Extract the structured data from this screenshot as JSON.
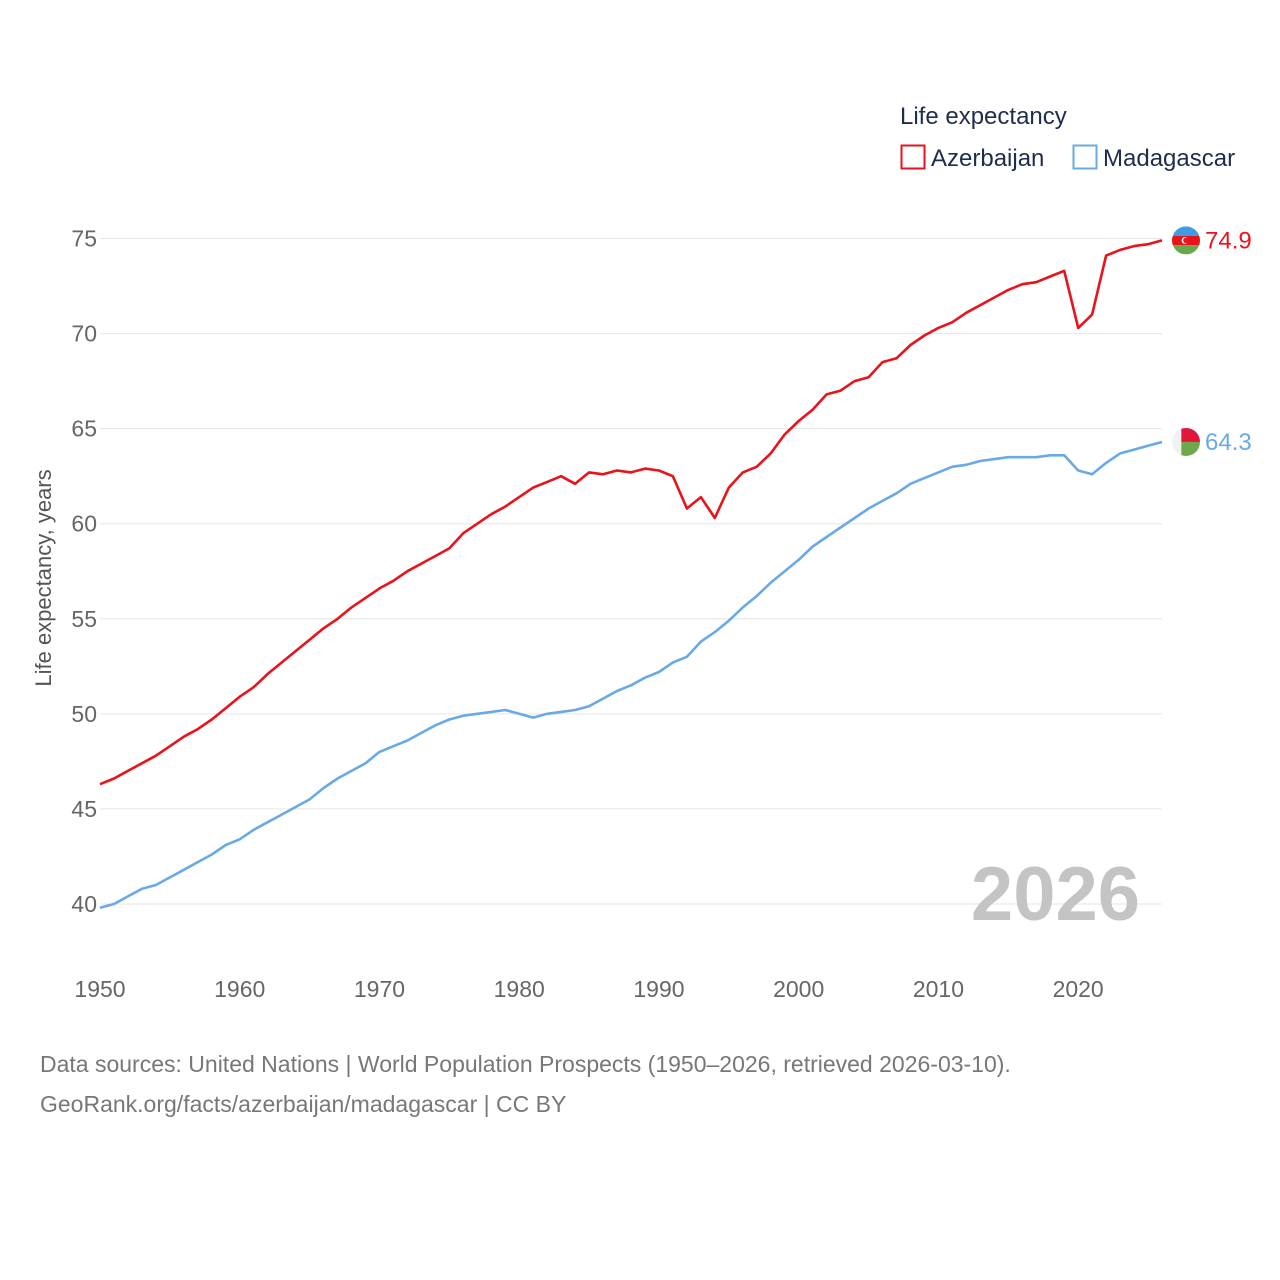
{
  "chart_data": {
    "type": "line",
    "title": "Life expectancy",
    "ylabel": "Life expectancy, years",
    "xlabel": "",
    "xlim": [
      1950,
      2026
    ],
    "ylim": [
      38,
      76.5
    ],
    "yticks": [
      40,
      45,
      50,
      55,
      60,
      65,
      70,
      75
    ],
    "xticks": [
      1950,
      1960,
      1970,
      1980,
      1990,
      2000,
      2010,
      2020
    ],
    "grid": true,
    "legend_position": "top-right",
    "current_year": "2026",
    "x": [
      1950,
      1951,
      1952,
      1953,
      1954,
      1955,
      1956,
      1957,
      1958,
      1959,
      1960,
      1961,
      1962,
      1963,
      1964,
      1965,
      1966,
      1967,
      1968,
      1969,
      1970,
      1971,
      1972,
      1973,
      1974,
      1975,
      1976,
      1977,
      1978,
      1979,
      1980,
      1981,
      1982,
      1983,
      1984,
      1985,
      1986,
      1987,
      1988,
      1989,
      1990,
      1991,
      1992,
      1993,
      1994,
      1995,
      1996,
      1997,
      1998,
      1999,
      2000,
      2001,
      2002,
      2003,
      2004,
      2005,
      2006,
      2007,
      2008,
      2009,
      2010,
      2011,
      2012,
      2013,
      2014,
      2015,
      2016,
      2017,
      2018,
      2019,
      2020,
      2021,
      2022,
      2023,
      2024,
      2025,
      2026
    ],
    "series": [
      {
        "name": "Azerbaijan",
        "color": "#e8131b",
        "end_label": "74.9",
        "flag_icon": "azerbaijan-flag-icon",
        "values": [
          46.3,
          46.6,
          47.0,
          47.4,
          47.8,
          48.3,
          48.8,
          49.2,
          49.7,
          50.3,
          50.9,
          51.4,
          52.1,
          52.7,
          53.3,
          53.9,
          54.5,
          55.0,
          55.6,
          56.1,
          56.6,
          57.0,
          57.5,
          57.9,
          58.3,
          58.7,
          59.5,
          60.0,
          60.5,
          60.9,
          61.4,
          61.9,
          62.2,
          62.5,
          62.1,
          62.7,
          62.6,
          62.8,
          62.7,
          62.9,
          62.8,
          62.5,
          60.8,
          61.4,
          60.3,
          61.9,
          62.7,
          63.0,
          63.7,
          64.7,
          65.4,
          66.0,
          66.8,
          67.0,
          67.5,
          67.7,
          68.5,
          68.7,
          69.4,
          69.9,
          70.3,
          70.6,
          71.1,
          71.5,
          71.9,
          72.3,
          72.6,
          72.7,
          73.0,
          73.3,
          70.3,
          71.0,
          74.1,
          74.4,
          74.6,
          74.7,
          74.9
        ]
      },
      {
        "name": "Madagascar",
        "color": "#6aaae4",
        "end_label": "64.3",
        "flag_icon": "madagascar-flag-icon",
        "values": [
          39.8,
          40.0,
          40.4,
          40.8,
          41.0,
          41.4,
          41.8,
          42.2,
          42.6,
          43.1,
          43.4,
          43.9,
          44.3,
          44.7,
          45.1,
          45.5,
          46.1,
          46.6,
          47.0,
          47.4,
          48.0,
          48.3,
          48.6,
          49.0,
          49.4,
          49.7,
          49.9,
          50.0,
          50.1,
          50.2,
          50.0,
          49.8,
          50.0,
          50.1,
          50.2,
          50.4,
          50.8,
          51.2,
          51.5,
          51.9,
          52.2,
          52.7,
          53.0,
          53.8,
          54.3,
          54.9,
          55.6,
          56.2,
          56.9,
          57.5,
          58.1,
          58.8,
          59.3,
          59.8,
          60.3,
          60.8,
          61.2,
          61.6,
          62.1,
          62.4,
          62.7,
          63.0,
          63.1,
          63.3,
          63.4,
          63.5,
          63.5,
          63.5,
          63.6,
          63.6,
          62.8,
          62.6,
          63.2,
          63.7,
          63.9,
          64.1,
          64.3
        ]
      }
    ]
  },
  "source": {
    "line1": "Data sources: United Nations | World Population Prospects (1950–2026, retrieved 2026-03-10).",
    "line2": "GeoRank.org/facts/azerbaijan/madagascar | CC BY"
  }
}
